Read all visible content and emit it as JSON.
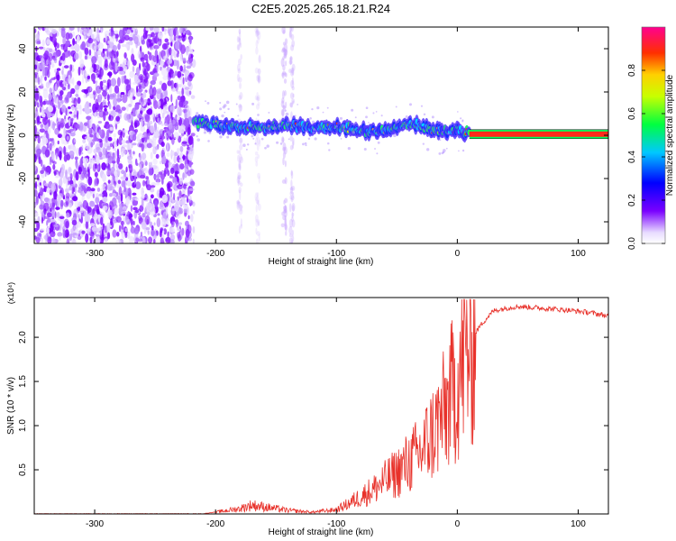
{
  "figure": {
    "title": "C2E5.2025.265.18.21.R24"
  },
  "chart_data": [
    {
      "type": "heatmap",
      "title": "C2E5.2025.265.18.21.R24",
      "xlabel": "Height of straight line (km)",
      "ylabel": "Frequency (Hz)",
      "xlim": [
        -350,
        125
      ],
      "ylim": [
        -50,
        50
      ],
      "x_ticks": [
        -300,
        -200,
        -100,
        0,
        100
      ],
      "y_ticks": [
        -40,
        -20,
        0,
        20,
        40
      ],
      "colorbar": {
        "label": "Normalized spectral amplitude",
        "range": [
          0.0,
          1.0
        ],
        "ticks": [
          0.0,
          0.2,
          0.4,
          0.6,
          0.8
        ]
      },
      "ridge": {
        "x": [
          -218,
          -200,
          -180,
          -160,
          -140,
          -120,
          -100,
          -80,
          -60,
          -40,
          -20,
          0,
          10,
          125
        ],
        "y": [
          6,
          5,
          4,
          3,
          5,
          3,
          4,
          2,
          2,
          6,
          2,
          2,
          1,
          0
        ]
      }
    },
    {
      "type": "line",
      "xlabel": "Height of straight line (km)",
      "ylabel": "SNR (10 * v/v)",
      "y_multiplier": "(x10⁴)",
      "xlim": [
        -350,
        125
      ],
      "ylim": [
        0,
        2.45
      ],
      "x_ticks": [
        -300,
        -200,
        -100,
        0,
        100
      ],
      "y_ticks": [
        0.5,
        1.0,
        1.5,
        2.0
      ],
      "series": [
        {
          "color": "#e8312a",
          "x": [
            -350,
            -300,
            -250,
            -210,
            -200,
            -190,
            -180,
            -170,
            -160,
            -150,
            -140,
            -120,
            -100,
            -90,
            -80,
            -70,
            -60,
            -50,
            -40,
            -30,
            -20,
            -10,
            0,
            5,
            10,
            20,
            30,
            40,
            50,
            70,
            90,
            110,
            125
          ],
          "y": [
            0.0,
            0.0,
            0.0,
            0.0,
            0.02,
            0.04,
            0.06,
            0.1,
            0.08,
            0.06,
            0.04,
            0.02,
            0.05,
            0.12,
            0.2,
            0.28,
            0.38,
            0.48,
            0.6,
            0.72,
            0.95,
            1.2,
            1.55,
            1.75,
            1.95,
            2.15,
            2.3,
            2.33,
            2.35,
            2.33,
            2.31,
            2.28,
            2.24
          ]
        }
      ]
    }
  ]
}
